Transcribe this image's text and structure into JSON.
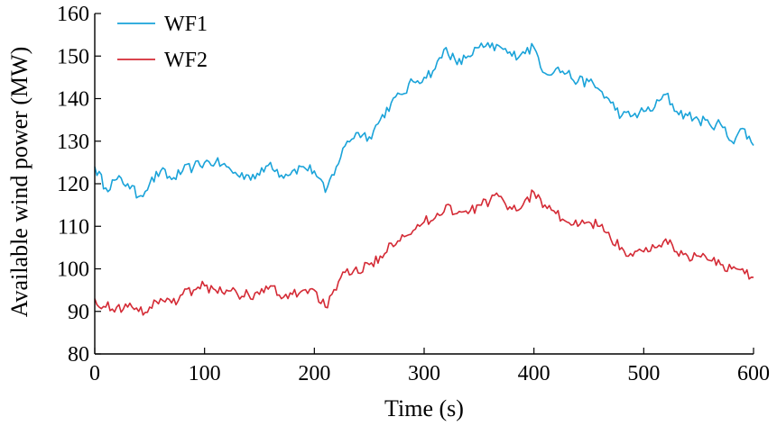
{
  "chart_data": {
    "type": "line",
    "xlabel": "Time (s)",
    "ylabel": "Available wind power (MW)",
    "xlim": [
      0,
      600
    ],
    "ylim": [
      80,
      160
    ],
    "xticks": [
      "0",
      "100",
      "200",
      "300",
      "400",
      "500",
      "600"
    ],
    "yticks": [
      "80",
      "90",
      "100",
      "110",
      "120",
      "130",
      "140",
      "150",
      "160"
    ],
    "grid": false,
    "legend_position": "top-left",
    "x": [
      0,
      10,
      20,
      30,
      40,
      50,
      60,
      70,
      80,
      90,
      100,
      110,
      120,
      130,
      140,
      150,
      160,
      170,
      180,
      190,
      200,
      210,
      220,
      230,
      240,
      250,
      260,
      270,
      280,
      290,
      300,
      310,
      320,
      330,
      340,
      350,
      360,
      370,
      380,
      390,
      400,
      410,
      420,
      430,
      440,
      450,
      460,
      470,
      480,
      490,
      500,
      510,
      520,
      530,
      540,
      550,
      560,
      570,
      580,
      590,
      600
    ],
    "series": [
      {
        "name": "WF1",
        "color": "#1AA3D9",
        "values": [
          124,
          119,
          121,
          120,
          117,
          120,
          123,
          121,
          123,
          124,
          125,
          125,
          124,
          122,
          122,
          122,
          125,
          122,
          123,
          124,
          123,
          118,
          124,
          130,
          132,
          131,
          135,
          139,
          141,
          144,
          145,
          147,
          152,
          148,
          150,
          152,
          152,
          152,
          150,
          151,
          152,
          146,
          147,
          146,
          144,
          144,
          142,
          139,
          136,
          136,
          137,
          138,
          141,
          137,
          136,
          135,
          134,
          134,
          130,
          133,
          129
        ]
      },
      {
        "name": "WF2",
        "color": "#D42A35",
        "values": [
          93,
          91,
          91,
          91,
          90,
          91,
          93,
          92,
          94,
          95,
          96,
          95,
          95,
          94,
          94,
          94,
          96,
          93,
          94,
          95,
          95,
          91,
          95,
          100,
          99,
          101,
          103,
          106,
          108,
          109,
          111,
          112,
          115,
          113,
          113,
          115,
          116,
          117,
          114,
          115,
          118,
          115,
          113,
          111,
          110,
          111,
          110,
          107,
          105,
          103,
          104,
          105,
          107,
          104,
          103,
          103,
          102,
          101,
          100,
          100,
          98
        ]
      }
    ]
  }
}
